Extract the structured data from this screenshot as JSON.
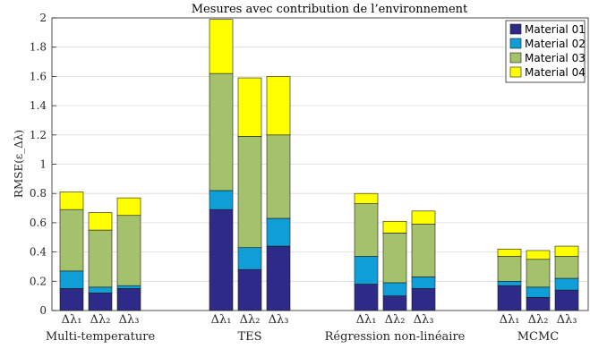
{
  "chart_data": {
    "type": "bar",
    "stacked": true,
    "title": "Mesures avec contribution de l’environnement",
    "ylabel": "RMSE(ε_Δλ)",
    "xlabel": "",
    "ylim": [
      0,
      2
    ],
    "yticks": [
      "0",
      "0.2",
      "0.4",
      "0.6",
      "0.8",
      "1",
      "1.2",
      "1.4",
      "1.6",
      "1.8",
      "2"
    ],
    "grid": true,
    "legend_position": "top-right",
    "groups": [
      "Multi-temperature",
      "TES",
      "Régression non-linéaire",
      "MCMC"
    ],
    "bar_labels": [
      "Δλ₁",
      "Δλ₂",
      "Δλ₃"
    ],
    "series": [
      {
        "name": "Material 01",
        "color": "#2e2a87",
        "values": [
          [
            0.15,
            0.12,
            0.15
          ],
          [
            0.69,
            0.28,
            0.44
          ],
          [
            0.18,
            0.1,
            0.15
          ],
          [
            0.17,
            0.09,
            0.14
          ]
        ]
      },
      {
        "name": "Material 02",
        "color": "#0f9ed5",
        "values": [
          [
            0.12,
            0.04,
            0.02
          ],
          [
            0.13,
            0.15,
            0.19
          ],
          [
            0.19,
            0.09,
            0.08
          ],
          [
            0.03,
            0.07,
            0.08
          ]
        ]
      },
      {
        "name": "Material 03",
        "color": "#a4c16b",
        "values": [
          [
            0.42,
            0.39,
            0.48
          ],
          [
            0.8,
            0.76,
            0.57
          ],
          [
            0.36,
            0.34,
            0.36
          ],
          [
            0.17,
            0.19,
            0.15
          ]
        ]
      },
      {
        "name": "Material 04",
        "color": "#ffff00",
        "values": [
          [
            0.12,
            0.12,
            0.12
          ],
          [
            0.37,
            0.4,
            0.4
          ],
          [
            0.07,
            0.08,
            0.09
          ],
          [
            0.05,
            0.06,
            0.07
          ]
        ]
      }
    ]
  }
}
